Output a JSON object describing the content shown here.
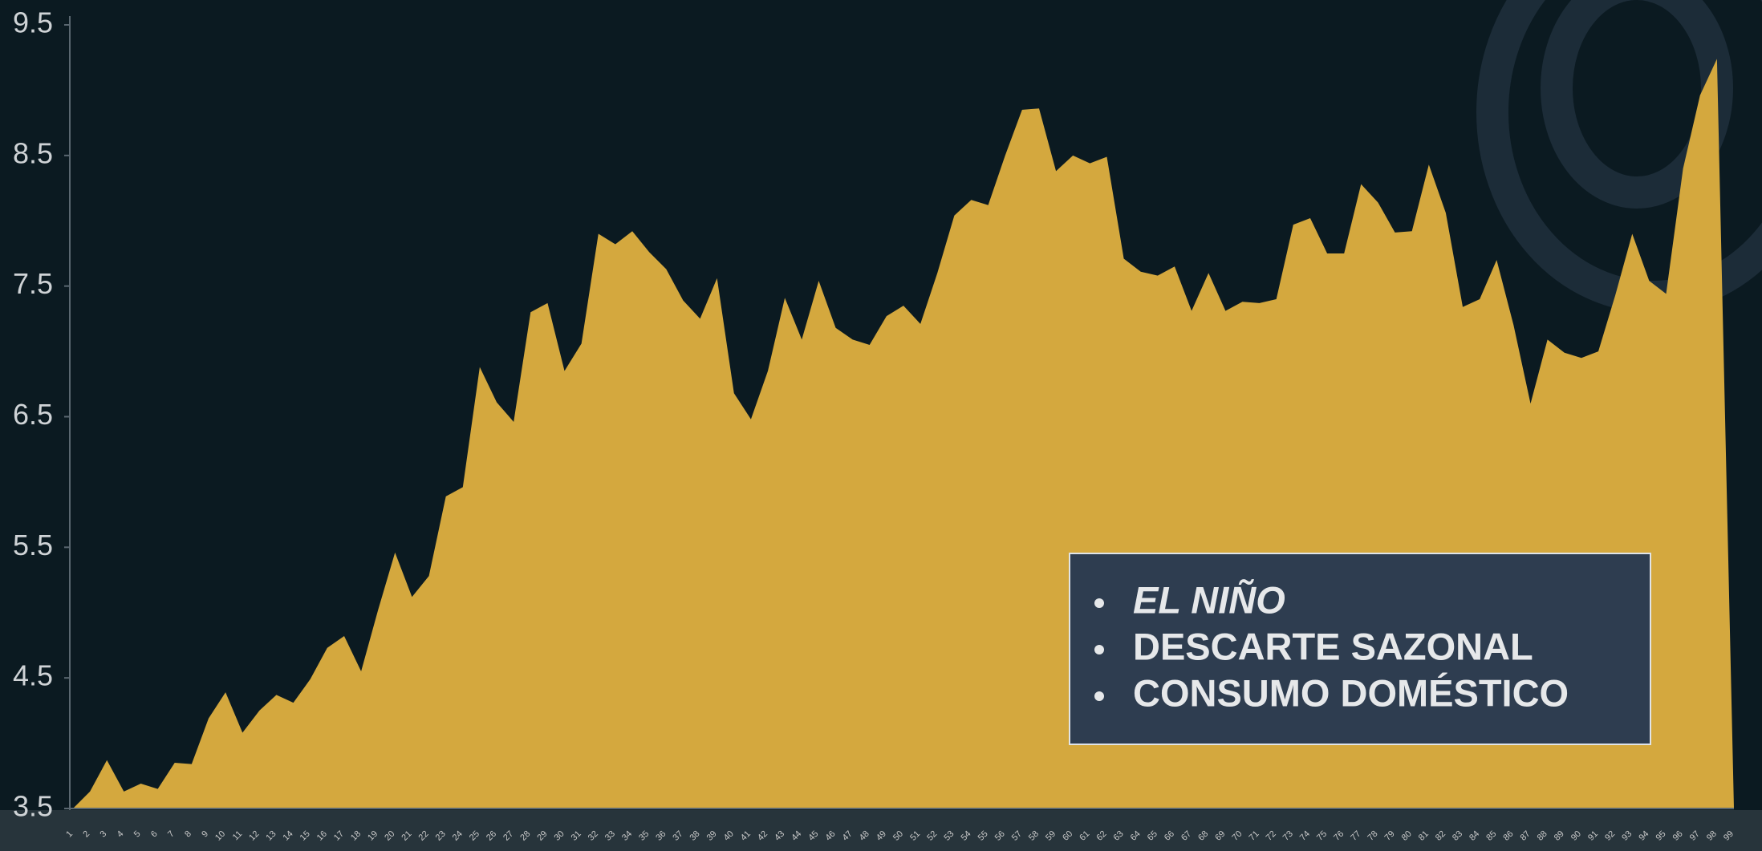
{
  "chart_data": {
    "type": "area",
    "color": "#d4a83e",
    "categories": [
      1,
      2,
      3,
      4,
      5,
      6,
      7,
      8,
      9,
      10,
      11,
      12,
      13,
      14,
      15,
      16,
      17,
      18,
      19,
      20,
      21,
      22,
      23,
      24,
      25,
      26,
      27,
      28,
      29,
      30,
      31,
      32,
      33,
      34,
      35,
      36,
      37,
      38,
      39,
      40,
      41,
      42,
      43,
      44,
      45,
      46,
      47,
      48,
      49,
      50,
      51,
      52,
      53,
      54,
      55,
      56,
      57,
      58,
      59,
      60,
      61,
      62,
      63,
      64,
      65,
      66,
      67,
      68,
      69,
      70,
      71,
      72,
      73,
      74,
      75,
      76,
      77,
      78,
      79,
      80,
      81,
      82,
      83,
      84,
      85,
      86,
      87,
      88,
      89,
      90,
      91,
      92,
      93,
      94,
      95,
      96,
      97,
      98,
      99
    ],
    "values": [
      3.5,
      3.63,
      3.87,
      3.63,
      3.69,
      3.65,
      3.85,
      3.84,
      4.19,
      4.39,
      4.08,
      4.25,
      4.37,
      4.31,
      4.49,
      4.73,
      4.82,
      4.55,
      5.02,
      5.46,
      5.12,
      5.28,
      5.89,
      5.96,
      6.88,
      6.61,
      6.46,
      7.3,
      7.37,
      6.85,
      7.06,
      7.9,
      7.82,
      7.92,
      7.76,
      7.63,
      7.39,
      7.25,
      7.56,
      6.68,
      6.48,
      6.85,
      7.41,
      7.09,
      7.54,
      7.18,
      7.09,
      7.05,
      7.27,
      7.35,
      7.21,
      7.6,
      8.04,
      8.16,
      8.12,
      8.5,
      8.85,
      8.86,
      8.38,
      8.5,
      8.44,
      8.49,
      7.71,
      7.61,
      7.58,
      7.65,
      7.31,
      7.6,
      7.31,
      7.38,
      7.37,
      7.4,
      7.97,
      8.02,
      7.75,
      7.75,
      8.28,
      8.14,
      7.91,
      7.92,
      8.43,
      8.06,
      7.34,
      7.4,
      7.7,
      7.2,
      6.6,
      7.09,
      6.99,
      6.95,
      7.0,
      7.43,
      7.9,
      7.54,
      7.44,
      8.4,
      8.96,
      9.24,
      3.5
    ],
    "ylim": [
      3.5,
      9.5
    ],
    "yticks": [
      3.5,
      4.5,
      5.5,
      6.5,
      7.5,
      8.5,
      9.5
    ],
    "grid": false,
    "annotations": [
      "EL NIÑO",
      "DESCARTE SAZONAL",
      "CONSUMO DOMÉSTICO"
    ]
  }
}
